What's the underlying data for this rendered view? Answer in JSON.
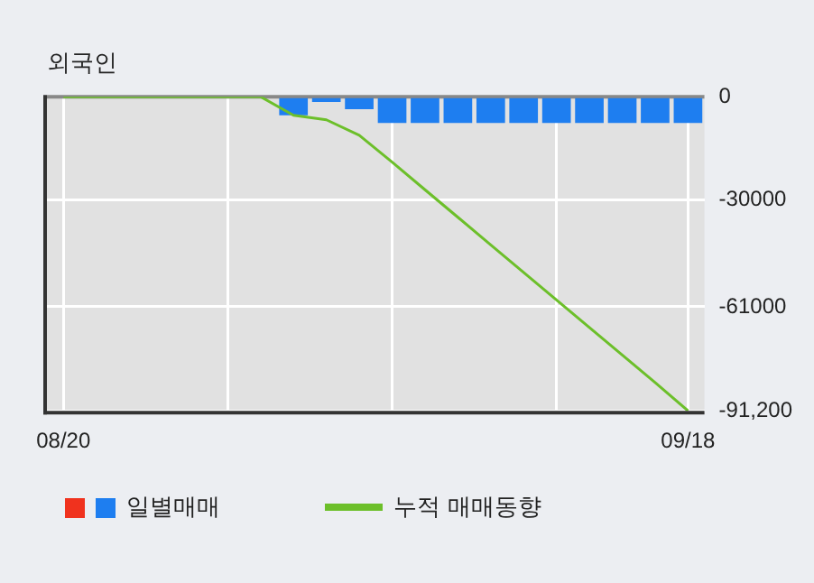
{
  "chart_data": {
    "type": "bar",
    "title": "외국인",
    "categories": [
      "08/20",
      null,
      null,
      null,
      null,
      null,
      null,
      null,
      null,
      null,
      null,
      null,
      null,
      null,
      null,
      null,
      null,
      null,
      null,
      "09/18"
    ],
    "series": [
      {
        "name": "일별매매",
        "color": "#1e7ef0",
        "values": [
          0,
          0,
          0,
          0,
          0,
          0,
          0,
          -5400,
          -1500,
          -3600,
          -7600,
          -7600,
          -7600,
          -7600,
          -7600,
          -7600,
          -7600,
          -7600,
          -7600,
          -7600
        ]
      },
      {
        "name": "누적 매매동향",
        "type": "line",
        "color": "#6cbf2a",
        "values": [
          0,
          0,
          0,
          0,
          0,
          0,
          0,
          -5400,
          -6700,
          -11200,
          -19000,
          -27000,
          -35000,
          -43000,
          -51000,
          -59000,
          -67000,
          -75000,
          -83000,
          -91200
        ]
      }
    ],
    "ylim": [
      -91200,
      0
    ],
    "yticks": [
      0,
      -30000,
      -61000,
      {
        "value": -91200,
        "label": "-91,200"
      }
    ],
    "grid": true,
    "legend": "bottom",
    "marker": "none"
  }
}
